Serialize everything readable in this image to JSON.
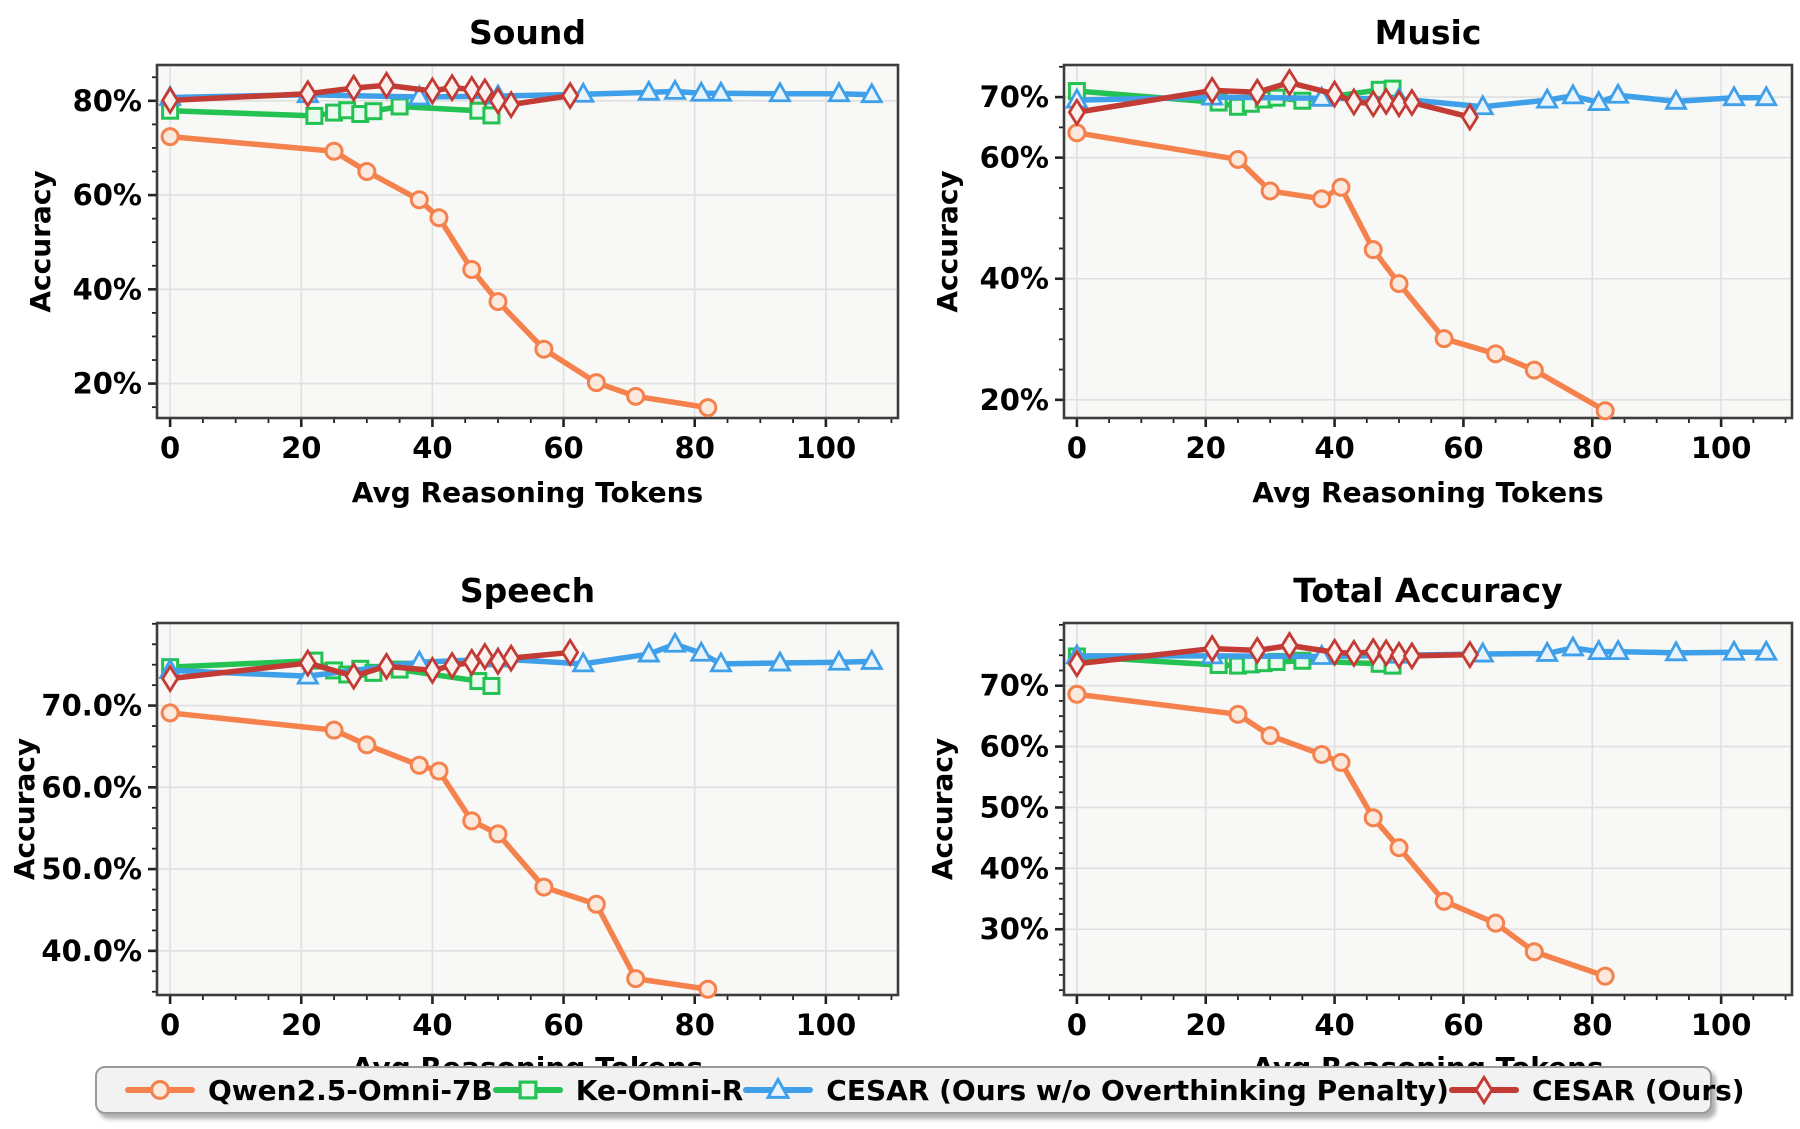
{
  "figure": {
    "background": "#ffffff",
    "description": "2x2 grid of accuracy vs reasoning-tokens line charts"
  },
  "colors": {
    "qwen_orange": "#F5814D",
    "ke_green": "#23C253",
    "cesar_wo_blue": "#3FA0E9",
    "cesar_red": "#C23B34",
    "plot_bg": "#f8f8f6",
    "gridline": "#e0e0e0",
    "spine": "#3d3d3d"
  },
  "legend": {
    "items": [
      {
        "label": "Qwen2.5-Omni-7B",
        "marker": "circle",
        "color": "#F5814D",
        "fill": "#FCE9DE"
      },
      {
        "label": "Ke-Omni-R",
        "marker": "square",
        "color": "#23C253",
        "fill": "#EBFAEE"
      },
      {
        "label": "CESAR (Ours w/o Overthinking Penalty)",
        "marker": "triangle",
        "color": "#3FA0E9",
        "fill": "#E9F3FC"
      },
      {
        "label": "CESAR (Ours)",
        "marker": "diamond",
        "color": "#C23B34",
        "fill": "#FAF1EE"
      }
    ]
  },
  "chart_data": [
    {
      "id": "sound",
      "type": "line",
      "title": "Sound",
      "xlabel": "Avg Reasoning Tokens",
      "ylabel": "Accuracy",
      "xlim": [
        -2,
        111
      ],
      "ylim": [
        12.7,
        87.6
      ],
      "grid": true,
      "legend_position": "figure-bottom",
      "xticks": [
        {
          "v": 0,
          "label": "0"
        },
        {
          "v": 20,
          "label": "20"
        },
        {
          "v": 40,
          "label": "40"
        },
        {
          "v": 60,
          "label": "60"
        },
        {
          "v": 80,
          "label": "80"
        },
        {
          "v": 100,
          "label": "100"
        }
      ],
      "yticks": [
        {
          "v": 20,
          "label": "20%"
        },
        {
          "v": 40,
          "label": "40%"
        },
        {
          "v": 60,
          "label": "60%"
        },
        {
          "v": 80,
          "label": "80%"
        }
      ],
      "x_minor_step": 5,
      "y_minor_step": 5,
      "series": [
        {
          "name": "Qwen2.5-Omni-7B",
          "marker": "circle",
          "color": "#F5814D",
          "fill": "#FCE9DE",
          "x": [
            0,
            25,
            30,
            38,
            41,
            46,
            50,
            57,
            65,
            71,
            82
          ],
          "y": [
            72.4,
            69.3,
            65.0,
            59.0,
            55.2,
            44.2,
            37.4,
            27.3,
            20.2,
            17.3,
            14.9
          ]
        },
        {
          "name": "Ke-Omni-R",
          "marker": "square",
          "color": "#23C253",
          "fill": "#EBFAEE",
          "x": [
            0,
            22,
            25,
            27,
            29,
            31,
            35,
            47,
            49
          ],
          "y": [
            77.9,
            76.8,
            77.5,
            78.0,
            77.2,
            77.8,
            78.8,
            77.9,
            76.9
          ]
        },
        {
          "name": "CESAR (Ours w/o Overthinking Penalty)",
          "marker": "triangle",
          "color": "#3FA0E9",
          "fill": "#E9F3FC",
          "x": [
            0,
            21,
            38,
            50,
            63,
            73,
            77,
            81,
            84,
            93,
            102,
            107
          ],
          "y": [
            80.7,
            81.3,
            80.8,
            81.0,
            81.4,
            81.8,
            82.0,
            81.6,
            81.6,
            81.5,
            81.5,
            81.3
          ]
        },
        {
          "name": "CESAR (Ours)",
          "marker": "diamond",
          "color": "#C23B34",
          "fill": "#FAF1EE",
          "x": [
            0,
            21,
            28,
            33,
            40,
            43,
            46,
            48,
            50,
            52,
            61
          ],
          "y": [
            80.1,
            81.5,
            82.7,
            83.3,
            82.1,
            82.8,
            82.4,
            81.9,
            80.0,
            79.2,
            81.1
          ]
        }
      ]
    },
    {
      "id": "music",
      "type": "line",
      "title": "Music",
      "xlabel": "Avg Reasoning Tokens",
      "ylabel": "Accuracy",
      "xlim": [
        -2,
        111
      ],
      "ylim": [
        17.0,
        75.3
      ],
      "grid": true,
      "legend_position": "figure-bottom",
      "xticks": [
        {
          "v": 0,
          "label": "0"
        },
        {
          "v": 20,
          "label": "20"
        },
        {
          "v": 40,
          "label": "40"
        },
        {
          "v": 60,
          "label": "60"
        },
        {
          "v": 80,
          "label": "80"
        },
        {
          "v": 100,
          "label": "100"
        }
      ],
      "yticks": [
        {
          "v": 20,
          "label": "20%"
        },
        {
          "v": 40,
          "label": "40%"
        },
        {
          "v": 60,
          "label": "60%"
        },
        {
          "v": 70,
          "label": "70%"
        }
      ],
      "x_minor_step": 5,
      "y_minor_step": 5,
      "series": [
        {
          "name": "Qwen2.5-Omni-7B",
          "marker": "circle",
          "color": "#F5814D",
          "fill": "#FCE9DE",
          "x": [
            0,
            25,
            30,
            38,
            41,
            46,
            50,
            57,
            65,
            71,
            82
          ],
          "y": [
            64.1,
            59.7,
            54.5,
            53.2,
            55.1,
            44.8,
            39.2,
            30.1,
            27.6,
            24.9,
            18.2
          ]
        },
        {
          "name": "Ke-Omni-R",
          "marker": "square",
          "color": "#23C253",
          "fill": "#EBFAEE",
          "x": [
            0,
            22,
            25,
            27,
            29,
            31,
            35,
            47,
            49
          ],
          "y": [
            71.0,
            69.1,
            68.4,
            68.9,
            69.6,
            69.9,
            69.4,
            71.2,
            71.4
          ]
        },
        {
          "name": "CESAR (Ours w/o Overthinking Penalty)",
          "marker": "triangle",
          "color": "#3FA0E9",
          "fill": "#E9F3FC",
          "x": [
            0,
            21,
            38,
            50,
            63,
            73,
            77,
            81,
            84,
            93,
            102,
            107
          ],
          "y": [
            69.5,
            70.0,
            69.8,
            69.7,
            68.4,
            69.5,
            70.2,
            69.1,
            70.3,
            69.3,
            69.9,
            69.9
          ]
        },
        {
          "name": "CESAR (Ours)",
          "marker": "diamond",
          "color": "#C23B34",
          "fill": "#FAF1EE",
          "x": [
            0,
            21,
            28,
            33,
            40,
            43,
            46,
            48,
            50,
            52,
            61
          ],
          "y": [
            67.5,
            71.1,
            70.8,
            72.4,
            70.5,
            69.2,
            68.9,
            69.3,
            68.9,
            69.1,
            66.7
          ]
        }
      ]
    },
    {
      "id": "speech",
      "type": "line",
      "title": "Speech",
      "xlabel": "Avg Reasoning Tokens",
      "ylabel": "Accuracy",
      "xlim": [
        -2,
        111
      ],
      "ylim": [
        34.6,
        80.1
      ],
      "grid": true,
      "legend_position": "figure-bottom",
      "xticks": [
        {
          "v": 0,
          "label": "0"
        },
        {
          "v": 20,
          "label": "20"
        },
        {
          "v": 40,
          "label": "40"
        },
        {
          "v": 60,
          "label": "60"
        },
        {
          "v": 80,
          "label": "80"
        },
        {
          "v": 100,
          "label": "100"
        }
      ],
      "yticks": [
        {
          "v": 40,
          "label": "40.0%"
        },
        {
          "v": 50,
          "label": "50.0%"
        },
        {
          "v": 60,
          "label": "60.0%"
        },
        {
          "v": 70,
          "label": "70.0%"
        }
      ],
      "x_minor_step": 5,
      "y_minor_step": 2.5,
      "series": [
        {
          "name": "Qwen2.5-Omni-7B",
          "marker": "circle",
          "color": "#F5814D",
          "fill": "#FCE9DE",
          "x": [
            0,
            25,
            30,
            38,
            41,
            46,
            50,
            57,
            65,
            71,
            82
          ],
          "y": [
            69.1,
            67.0,
            65.2,
            62.7,
            62.0,
            55.9,
            54.3,
            47.8,
            45.7,
            36.6,
            35.3
          ]
        },
        {
          "name": "Ke-Omni-R",
          "marker": "square",
          "color": "#23C253",
          "fill": "#EBFAEE",
          "x": [
            0,
            22,
            25,
            27,
            29,
            31,
            35,
            47,
            49
          ],
          "y": [
            74.7,
            75.5,
            74.3,
            73.8,
            74.5,
            74.0,
            74.4,
            73.0,
            72.4
          ]
        },
        {
          "name": "CESAR (Ours w/o Overthinking Penalty)",
          "marker": "triangle",
          "color": "#3FA0E9",
          "fill": "#E9F3FC",
          "x": [
            0,
            21,
            38,
            50,
            63,
            73,
            77,
            81,
            84,
            93,
            102,
            107
          ],
          "y": [
            74.3,
            73.6,
            75.3,
            75.7,
            75.1,
            76.3,
            77.5,
            76.4,
            75.1,
            75.2,
            75.3,
            75.4
          ]
        },
        {
          "name": "CESAR (Ours)",
          "marker": "diamond",
          "color": "#C23B34",
          "fill": "#FAF1EE",
          "x": [
            0,
            21,
            28,
            33,
            40,
            43,
            46,
            48,
            50,
            52,
            61
          ],
          "y": [
            73.3,
            75.2,
            73.6,
            74.8,
            74.3,
            74.9,
            75.3,
            76.0,
            75.4,
            75.8,
            76.5
          ]
        }
      ]
    },
    {
      "id": "total",
      "type": "line",
      "title": "Total Accuracy",
      "xlabel": "Avg Reasoning Tokens",
      "ylabel": "Accuracy",
      "xlim": [
        -2,
        111
      ],
      "ylim": [
        19.2,
        80.3
      ],
      "grid": true,
      "legend_position": "figure-bottom",
      "xticks": [
        {
          "v": 0,
          "label": "0"
        },
        {
          "v": 20,
          "label": "20"
        },
        {
          "v": 40,
          "label": "40"
        },
        {
          "v": 60,
          "label": "60"
        },
        {
          "v": 80,
          "label": "80"
        },
        {
          "v": 100,
          "label": "100"
        }
      ],
      "yticks": [
        {
          "v": 30,
          "label": "30%"
        },
        {
          "v": 40,
          "label": "40%"
        },
        {
          "v": 50,
          "label": "50%"
        },
        {
          "v": 60,
          "label": "60%"
        },
        {
          "v": 70,
          "label": "70%"
        }
      ],
      "x_minor_step": 5,
      "y_minor_step": 2.5,
      "series": [
        {
          "name": "Qwen2.5-Omni-7B",
          "marker": "circle",
          "color": "#F5814D",
          "fill": "#FCE9DE",
          "x": [
            0,
            25,
            30,
            38,
            41,
            46,
            50,
            57,
            65,
            71,
            82
          ],
          "y": [
            68.6,
            65.3,
            61.8,
            58.7,
            57.4,
            48.3,
            43.4,
            34.6,
            31.0,
            26.3,
            22.3
          ]
        },
        {
          "name": "Ke-Omni-R",
          "marker": "square",
          "color": "#23C253",
          "fill": "#EBFAEE",
          "x": [
            0,
            22,
            25,
            27,
            29,
            31,
            35,
            47,
            49
          ],
          "y": [
            74.8,
            73.4,
            73.3,
            73.5,
            73.7,
            73.9,
            74.1,
            73.6,
            73.3
          ]
        },
        {
          "name": "CESAR (Ours w/o Overthinking Penalty)",
          "marker": "triangle",
          "color": "#3FA0E9",
          "fill": "#E9F3FC",
          "x": [
            0,
            21,
            38,
            50,
            63,
            73,
            77,
            81,
            84,
            93,
            102,
            107
          ],
          "y": [
            74.9,
            74.9,
            74.8,
            75.0,
            75.2,
            75.3,
            76.2,
            75.6,
            75.6,
            75.4,
            75.5,
            75.5
          ]
        },
        {
          "name": "CESAR (Ours)",
          "marker": "diamond",
          "color": "#C23B34",
          "fill": "#FAF1EE",
          "x": [
            0,
            21,
            28,
            33,
            40,
            43,
            46,
            48,
            50,
            52,
            61
          ],
          "y": [
            73.6,
            76.1,
            75.8,
            76.6,
            75.5,
            75.3,
            75.6,
            75.4,
            75.0,
            74.9,
            75.1
          ]
        }
      ]
    }
  ]
}
